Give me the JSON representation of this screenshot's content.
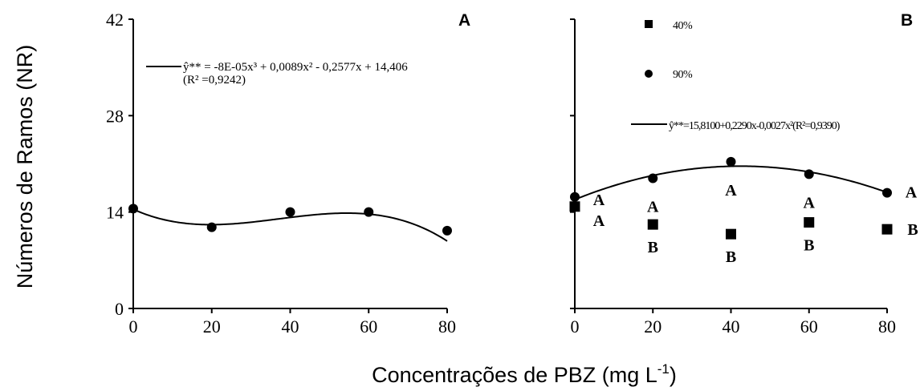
{
  "figure": {
    "ylabel": "Números de Ramos (NR)",
    "xlabel_main": "Concentrações de PBZ (mg L",
    "xlabel_sup": "-1",
    "xlabel_close": ")"
  },
  "chart_data": [
    {
      "type": "scatter",
      "panel": "A",
      "x_ticks": [
        "0",
        "20",
        "40",
        "60",
        "80"
      ],
      "y_ticks": [
        "0",
        "14",
        "28",
        "42"
      ],
      "xlim": [
        0,
        80
      ],
      "ylim": [
        0,
        42
      ],
      "series": [
        {
          "marker": "circle",
          "x": [
            0,
            20,
            40,
            60,
            80
          ],
          "y": [
            14.5,
            11.8,
            14.0,
            14.0,
            11.3
          ]
        }
      ],
      "fit": {
        "coef": [
          14.406,
          -0.2577,
          0.0089,
          -8e-05
        ]
      },
      "legend": {
        "line1": "ŷ** = -8E-05x³ + 0,0089x² - 0,2577x + 14,406",
        "line2": "(R² =0,9242)"
      }
    },
    {
      "type": "scatter",
      "panel": "B",
      "x_ticks": [
        "0",
        "20",
        "40",
        "60",
        "80"
      ],
      "xlim": [
        0,
        80
      ],
      "ylim": [
        0,
        42
      ],
      "series": [
        {
          "name": "40%",
          "marker": "square",
          "x": [
            0,
            20,
            40,
            60,
            80
          ],
          "y": [
            14.8,
            12.2,
            10.8,
            12.5,
            11.5
          ],
          "labels": [
            "A",
            "B",
            "B",
            "B",
            "B"
          ]
        },
        {
          "name": "90%",
          "marker": "circle",
          "x": [
            0,
            20,
            40,
            60,
            80
          ],
          "y": [
            16.2,
            18.9,
            21.3,
            19.5,
            16.8
          ],
          "labels": [
            "A",
            "A",
            "A",
            "A",
            "A"
          ]
        }
      ],
      "fit": {
        "coef": [
          15.81,
          0.229,
          -0.0027
        ]
      },
      "legend": {
        "fit_label": "ŷ**=15,8100+0,2290x-0,0027x²(R²=0,9390)"
      }
    }
  ]
}
